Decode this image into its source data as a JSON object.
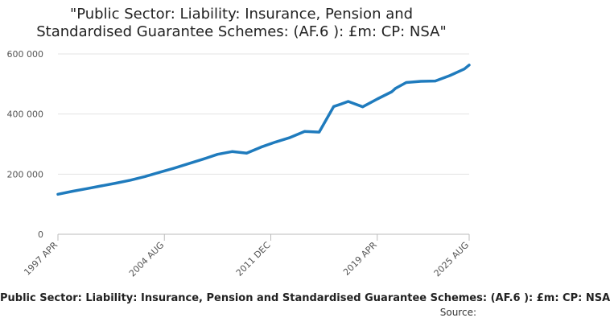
{
  "chart_data": {
    "type": "line",
    "title_lines": [
      "\"Public Sector: Liability: Insurance, Pension and",
      "Standardised Guarantee Schemes: (AF.6 ): £m: CP: NSA\""
    ],
    "xlabel": "",
    "ylabel": "",
    "ylim": [
      0,
      600000
    ],
    "y_ticks": [
      0,
      200000,
      400000,
      600000
    ],
    "y_tick_labels": [
      "0",
      "200 000",
      "400 000",
      "600 000"
    ],
    "x_range": [
      "1997 APR",
      "2025 AUG"
    ],
    "x_tick_labels": [
      "1997 APR",
      "2004 AUG",
      "2011 DEC",
      "2019 APR",
      "2025 AUG"
    ],
    "grid": "horizontal",
    "legend_position": "bottom",
    "series": [
      {
        "name": "Public Sector: Liability: Insurance, Pension and Standardised Guarantee Schemes: (AF.6 ): £m: CP: NSA",
        "color": "#1f7bbd",
        "x": [
          "1997 APR",
          "1998 APR",
          "1999 APR",
          "2000 APR",
          "2001 APR",
          "2002 APR",
          "2003 APR",
          "2004 APR",
          "2005 APR",
          "2006 APR",
          "2007 APR",
          "2008 APR",
          "2009 APR",
          "2010 APR",
          "2011 APR",
          "2012 APR",
          "2013 APR",
          "2014 APR",
          "2015 APR",
          "2016 APR",
          "2016 OCT",
          "2017 APR",
          "2018 APR",
          "2019 APR",
          "2020 APR",
          "2020 JUL",
          "2021 APR",
          "2022 APR",
          "2023 APR",
          "2024 APR",
          "2025 APR",
          "2025 AUG"
        ],
        "values": [
          133000,
          143000,
          152000,
          161000,
          170000,
          180000,
          192000,
          206000,
          220000,
          235000,
          250000,
          266000,
          275000,
          270000,
          290000,
          307000,
          322000,
          342000,
          340000,
          425000,
          433000,
          442000,
          424000,
          450000,
          474000,
          485000,
          505000,
          509000,
          510000,
          528000,
          550000,
          563000
        ]
      }
    ]
  },
  "source_label": "Source:"
}
